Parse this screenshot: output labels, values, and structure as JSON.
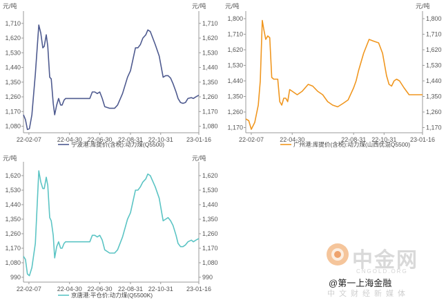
{
  "chart_data": [
    {
      "type": "line",
      "unit_left": "元/吨",
      "unit_right": "元/吨",
      "y_ticks": [
        1080,
        1170,
        1260,
        1350,
        1440,
        1530,
        1620,
        1710
      ],
      "ylim": [
        1040,
        1760
      ],
      "x_ticks": [
        "22-02-07",
        "22-04-30",
        "22-06-30",
        "22-08-31",
        "22-10-31",
        "23-01-16"
      ],
      "color": "#4e5a8f",
      "series": [
        {
          "name": "宁波港:库提价(含税):动力煤(Q5500)",
          "x": [
            "22-01-27",
            "22-01-31",
            "22-02-04",
            "22-02-08",
            "22-02-13",
            "22-02-20",
            "22-02-27",
            "22-03-03",
            "22-03-07",
            "22-03-10",
            "22-03-14",
            "22-03-17",
            "22-03-21",
            "22-03-24",
            "22-03-28",
            "22-03-31",
            "22-04-04",
            "22-04-08",
            "22-04-12",
            "22-04-15",
            "22-04-19",
            "22-04-22",
            "22-04-26",
            "22-04-30",
            "22-05-10",
            "22-05-20",
            "22-06-01",
            "22-06-10",
            "22-06-15",
            "22-06-20",
            "22-06-25",
            "22-06-30",
            "22-07-05",
            "22-07-10",
            "22-07-20",
            "22-07-30",
            "22-08-05",
            "22-08-15",
            "22-08-25",
            "22-08-31",
            "22-09-05",
            "22-09-10",
            "22-09-15",
            "22-09-20",
            "22-09-25",
            "22-10-01",
            "22-10-05",
            "22-10-10",
            "22-10-20",
            "22-10-28",
            "22-11-05",
            "22-11-10",
            "22-11-15",
            "22-11-20",
            "22-11-25",
            "22-12-01",
            "22-12-05",
            "22-12-10",
            "22-12-15",
            "22-12-20",
            "22-12-25",
            "23-01-01",
            "23-01-05",
            "23-01-10",
            "23-01-16"
          ],
          "values": [
            1150,
            1120,
            1060,
            1065,
            1150,
            1400,
            1700,
            1650,
            1560,
            1570,
            1640,
            1570,
            1380,
            1370,
            1220,
            1150,
            1210,
            1250,
            1210,
            1210,
            1240,
            1250,
            1250,
            1250,
            1250,
            1250,
            1250,
            1250,
            1290,
            1290,
            1280,
            1290,
            1250,
            1200,
            1190,
            1190,
            1210,
            1280,
            1380,
            1420,
            1490,
            1560,
            1560,
            1580,
            1620,
            1640,
            1670,
            1660,
            1580,
            1510,
            1380,
            1390,
            1390,
            1375,
            1340,
            1290,
            1250,
            1225,
            1220,
            1225,
            1250,
            1255,
            1250,
            1260,
            1270
          ]
        }
      ]
    },
    {
      "type": "line",
      "unit_left": "元/吨",
      "unit_right": "元/吨",
      "y_ticks": [
        1170,
        1260,
        1350,
        1440,
        1530,
        1620,
        1710,
        1800
      ],
      "ylim": [
        1140,
        1820
      ],
      "x_ticks": [
        "22-02-07",
        "22-04-30",
        "22-08-31",
        "22-10-31",
        "23-01-16"
      ],
      "color": "#f0961e",
      "series": [
        {
          "name": "广州港:库提价(含税):动力煤(山西优混Q5500)",
          "x": [
            "22-01-27",
            "22-02-02",
            "22-02-07",
            "22-02-14",
            "22-02-21",
            "22-02-25",
            "22-03-01",
            "22-03-04",
            "22-03-08",
            "22-03-12",
            "22-03-16",
            "22-03-20",
            "22-03-24",
            "22-03-28",
            "22-04-01",
            "22-04-05",
            "22-04-09",
            "22-04-13",
            "22-04-17",
            "22-04-21",
            "22-04-25",
            "22-04-30",
            "22-05-10",
            "22-05-20",
            "22-06-01",
            "22-06-10",
            "22-06-20",
            "22-06-30",
            "22-07-10",
            "22-07-20",
            "22-07-30",
            "22-08-10",
            "22-08-20",
            "22-08-31",
            "22-09-05",
            "22-09-10",
            "22-09-20",
            "22-10-01",
            "22-10-10",
            "22-10-20",
            "22-10-28",
            "22-11-05",
            "22-11-10",
            "22-11-15",
            "22-11-20",
            "22-11-25",
            "22-12-01",
            "22-12-10",
            "22-12-20",
            "22-12-30",
            "23-01-05",
            "23-01-16"
          ],
          "values": [
            1220,
            1210,
            1160,
            1200,
            1300,
            1440,
            1790,
            1740,
            1680,
            1700,
            1690,
            1460,
            1450,
            1450,
            1450,
            1320,
            1300,
            1340,
            1340,
            1320,
            1390,
            1380,
            1360,
            1380,
            1420,
            1410,
            1380,
            1360,
            1320,
            1300,
            1290,
            1310,
            1330,
            1400,
            1440,
            1500,
            1600,
            1680,
            1670,
            1660,
            1600,
            1470,
            1420,
            1410,
            1440,
            1450,
            1440,
            1400,
            1360,
            1360,
            1360,
            1360
          ]
        }
      ]
    },
    {
      "type": "line",
      "unit_left": "元/吨",
      "unit_right": "元/吨",
      "y_ticks": [
        990,
        1080,
        1170,
        1260,
        1350,
        1440,
        1530,
        1620
      ],
      "ylim": [
        960,
        1680
      ],
      "x_ticks": [
        "22-02-07",
        "22-04-30",
        "22-06-30",
        "22-08-31",
        "22-10-31",
        "23-01-16"
      ],
      "color": "#5bc4c4",
      "series": [
        {
          "name": "京唐港:平仓价:动力煤(Q5500K)",
          "x": [
            "22-01-27",
            "22-01-31",
            "22-02-04",
            "22-02-08",
            "22-02-13",
            "22-02-20",
            "22-02-27",
            "22-03-03",
            "22-03-07",
            "22-03-10",
            "22-03-14",
            "22-03-17",
            "22-03-21",
            "22-03-24",
            "22-03-28",
            "22-03-31",
            "22-04-04",
            "22-04-08",
            "22-04-12",
            "22-04-15",
            "22-04-19",
            "22-04-22",
            "22-04-26",
            "22-04-30",
            "22-05-10",
            "22-05-20",
            "22-06-01",
            "22-06-10",
            "22-06-15",
            "22-06-20",
            "22-06-25",
            "22-06-30",
            "22-07-05",
            "22-07-10",
            "22-07-20",
            "22-07-30",
            "22-08-05",
            "22-08-15",
            "22-08-25",
            "22-08-31",
            "22-09-05",
            "22-09-10",
            "22-09-15",
            "22-09-20",
            "22-09-25",
            "22-10-01",
            "22-10-05",
            "22-10-10",
            "22-10-20",
            "22-10-28",
            "22-11-05",
            "22-11-10",
            "22-11-15",
            "22-11-20",
            "22-11-25",
            "22-12-01",
            "22-12-05",
            "22-12-10",
            "22-12-15",
            "22-12-20",
            "22-12-25",
            "23-01-01",
            "23-01-05",
            "23-01-10",
            "23-01-16"
          ],
          "values": [
            1120,
            1100,
            1010,
            1000,
            1050,
            1200,
            1650,
            1580,
            1540,
            1540,
            1610,
            1560,
            1360,
            1340,
            1250,
            1110,
            1180,
            1210,
            1170,
            1170,
            1200,
            1210,
            1210,
            1210,
            1210,
            1210,
            1210,
            1210,
            1250,
            1250,
            1240,
            1250,
            1220,
            1160,
            1140,
            1140,
            1160,
            1240,
            1350,
            1390,
            1460,
            1530,
            1530,
            1550,
            1580,
            1600,
            1630,
            1620,
            1550,
            1480,
            1340,
            1350,
            1360,
            1340,
            1310,
            1250,
            1200,
            1180,
            1180,
            1190,
            1210,
            1220,
            1210,
            1220,
            1230
          ]
        }
      ]
    }
  ],
  "watermark": {
    "brand": "中金网",
    "sub": "CNGOLD.ORG",
    "line2": "@第一上海金融",
    "line3": "中文财经新媒体"
  }
}
